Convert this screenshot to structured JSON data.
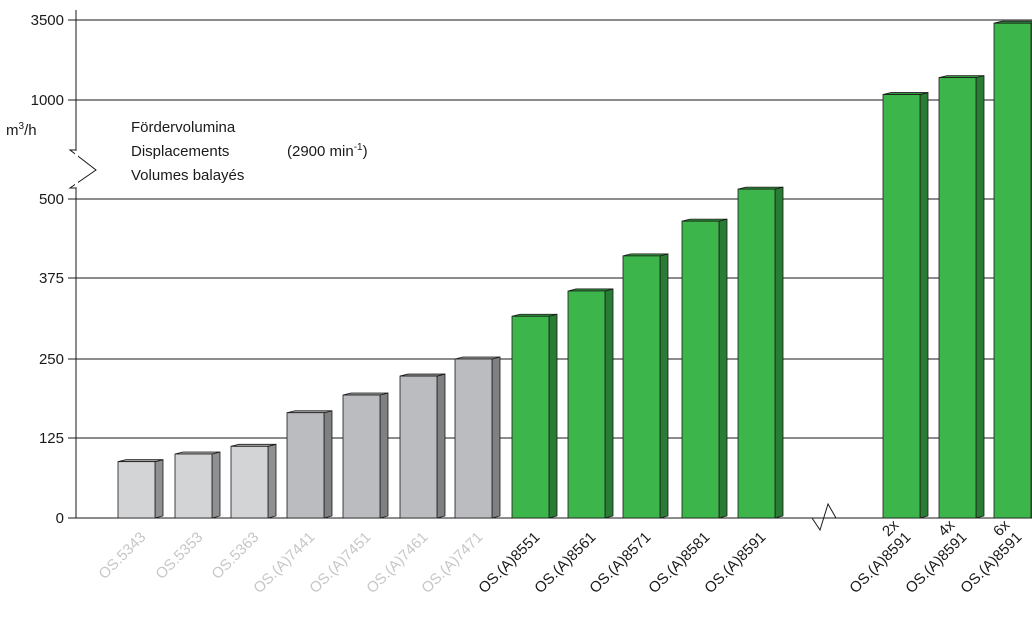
{
  "chart_data": {
    "type": "bar",
    "title": "",
    "xlabel": "",
    "ylabel": "m³/h",
    "ylabel_base": "m",
    "ylabel_sup": "3",
    "ylabel_tail": "/h",
    "note_lines": [
      "Fördervolumina",
      "Displacements",
      "Volumes balayés"
    ],
    "note_rpm": {
      "prefix": "(2900 min",
      "sup": "-1",
      "suffix": ")"
    },
    "yticks": [
      "0",
      "125",
      "250",
      "375",
      "500",
      "1000",
      "3500"
    ],
    "grid": true,
    "axis_break": true,
    "categories": [
      "OS.5343",
      "OS.5353",
      "OS.5363",
      "OS.(A)7441",
      "OS.(A)7451",
      "OS.(A)7461",
      "OS.(A)7471",
      "OS.(A)8551",
      "OS.(A)8561",
      "OS.(A)8571",
      "OS.(A)8581",
      "OS.(A)8591",
      "2x OS.(A)8591",
      "4x OS.(A)8591",
      "6x OS.(A)8591"
    ],
    "label_lines": [
      [
        "OS.5343"
      ],
      [
        "OS.5353"
      ],
      [
        "OS.5363"
      ],
      [
        "OS.(A)7441"
      ],
      [
        "OS.(A)7451"
      ],
      [
        "OS.(A)7461"
      ],
      [
        "OS.(A)7471"
      ],
      [
        "OS.(A)8551"
      ],
      [
        "OS.(A)8561"
      ],
      [
        "OS.(A)8571"
      ],
      [
        "OS.(A)8581"
      ],
      [
        "OS.(A)8591"
      ],
      [
        "2x",
        "OS.(A)8591"
      ],
      [
        "4x",
        "OS.(A)8591"
      ],
      [
        "6x",
        "OS.(A)8591"
      ]
    ],
    "values": [
      88,
      100,
      112,
      165,
      193,
      223,
      250,
      316,
      355,
      410,
      465,
      550,
      1170,
      1700,
      3400
    ],
    "bar_colors": [
      "#d3d4d5",
      "#d3d4d5",
      "#d3d4d5",
      "#bbbcbf",
      "#bbbcbf",
      "#bbbcbf",
      "#bbbcbf",
      "#3cb64b",
      "#3cb64b",
      "#3cb64b",
      "#3cb64b",
      "#3cb64b",
      "#3cb64b",
      "#3cb64b",
      "#3cb64b"
    ],
    "label_colors": [
      "#c6c7c9",
      "#c6c7c9",
      "#c6c7c9",
      "#c6c7c9",
      "#c6c7c9",
      "#c6c7c9",
      "#c6c7c9",
      "#1a1a1a",
      "#1a1a1a",
      "#1a1a1a",
      "#1a1a1a",
      "#1a1a1a",
      "#1a1a1a",
      "#1a1a1a",
      "#1a1a1a"
    ]
  }
}
